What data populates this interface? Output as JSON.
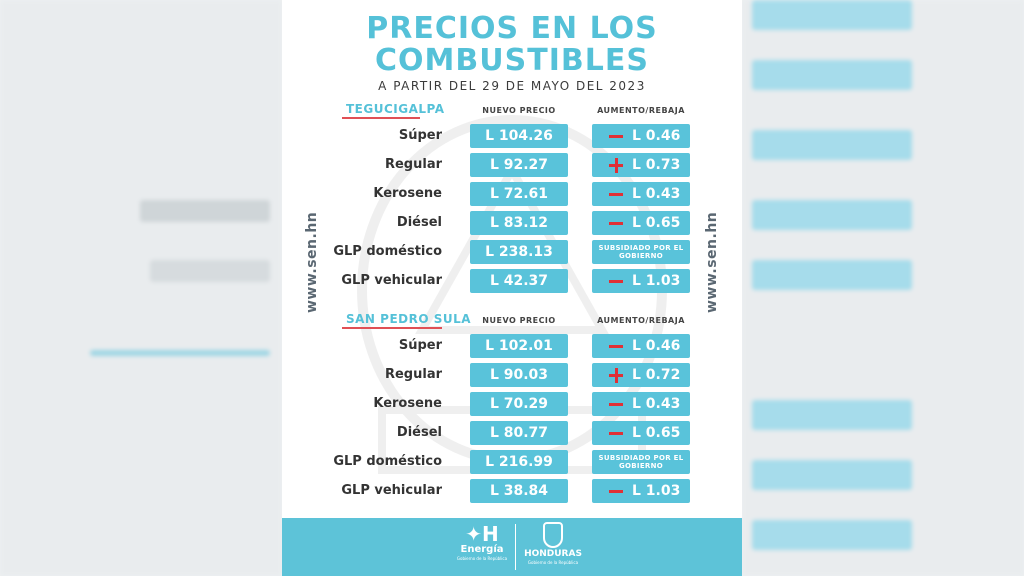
{
  "title_line1": "PRECIOS EN LOS",
  "title_line2": "COMBUSTIBLES",
  "subtitle": "A PARTIR DEL 29 DE MAYO DEL 2023",
  "side_url": "www.sen.hn",
  "col_price": "NUEVO PRECIO",
  "col_change": "AUMENTO/REBAJA",
  "cities": [
    {
      "name": "TEGUCIGALPA",
      "rows": [
        {
          "label": "Súper",
          "price": "L 104.26",
          "sign": "minus",
          "change": "L 0.46"
        },
        {
          "label": "Regular",
          "price": "L 92.27",
          "sign": "plus",
          "change": "L 0.73"
        },
        {
          "label": "Kerosene",
          "price": "L 72.61",
          "sign": "minus",
          "change": "L 0.43"
        },
        {
          "label": "Diésel",
          "price": "L 83.12",
          "sign": "minus",
          "change": "L 0.65"
        },
        {
          "label": "GLP doméstico",
          "price": "L 238.13",
          "sign": "none",
          "change": "SUBSIDIADO POR EL GOBIERNO"
        },
        {
          "label": "GLP vehicular",
          "price": "L 42.37",
          "sign": "minus",
          "change": "L 1.03"
        }
      ]
    },
    {
      "name": "SAN PEDRO SULA",
      "rows": [
        {
          "label": "Súper",
          "price": "L 102.01",
          "sign": "minus",
          "change": "L 0.46"
        },
        {
          "label": "Regular",
          "price": "L 90.03",
          "sign": "plus",
          "change": "L 0.72"
        },
        {
          "label": "Kerosene",
          "price": "L 70.29",
          "sign": "minus",
          "change": "L 0.43"
        },
        {
          "label": "Diésel",
          "price": "L 80.77",
          "sign": "minus",
          "change": "L 0.65"
        },
        {
          "label": "GLP doméstico",
          "price": "L 216.99",
          "sign": "none",
          "change": "SUBSIDIADO POR EL GOBIERNO"
        },
        {
          "label": "GLP vehicular",
          "price": "L 38.84",
          "sign": "minus",
          "change": "L 1.03"
        }
      ]
    }
  ],
  "footer": {
    "logo1_name": "Energía",
    "logo1_sub": "Gobierno de la República",
    "logo2_name": "HONDURAS",
    "logo2_sub": "Gobierno de la República"
  },
  "colors": {
    "accent": "#55c1d8",
    "box": "#59c3da",
    "sign": "#e03035",
    "city_underline": "#e05055",
    "footer": "#5dc3d8"
  }
}
